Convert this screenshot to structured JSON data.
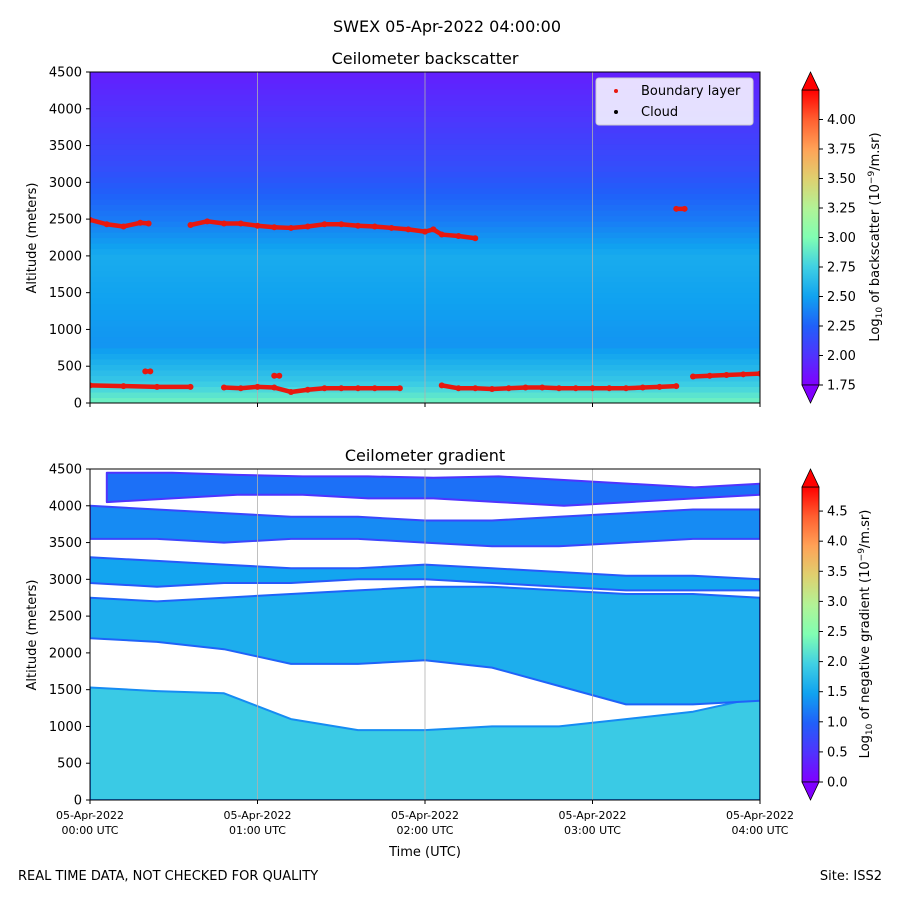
{
  "figure": {
    "suptitle": "SWEX 05-Apr-2022 04:00:00",
    "quality_note": "REAL TIME DATA, NOT CHECKED FOR QUALITY",
    "site": "Site: ISS2",
    "xlabel": "Time (UTC)"
  },
  "chart_data": [
    {
      "type": "heatmap",
      "title": "Ceilometer backscatter",
      "ylabel": "Altitude (meters)",
      "xlim_hours": [
        0,
        4
      ],
      "ylim": [
        0,
        4500
      ],
      "yticks": [
        0,
        500,
        1000,
        1500,
        2000,
        2500,
        3000,
        3500,
        4000,
        4500
      ],
      "xticks": [
        {
          "date": "05-Apr-2022",
          "time": "00:00 UTC"
        },
        {
          "date": "05-Apr-2022",
          "time": "01:00 UTC"
        },
        {
          "date": "05-Apr-2022",
          "time": "02:00 UTC"
        },
        {
          "date": "05-Apr-2022",
          "time": "03:00 UTC"
        },
        {
          "date": "05-Apr-2022",
          "time": "04:00 UTC"
        }
      ],
      "show_xtick_labels": false,
      "grid_x": true,
      "colormap": "rainbow",
      "colorbar": {
        "label": "Log10 of backscatter (10^-9/m.sr)",
        "range": [
          1.75,
          4.25
        ],
        "ticks": [
          "1.75",
          "2.00",
          "2.25",
          "2.50",
          "2.75",
          "3.00",
          "3.25",
          "3.50",
          "3.75",
          "4.00"
        ],
        "tick_values": [
          1.75,
          2.0,
          2.25,
          2.5,
          2.75,
          3.0,
          3.25,
          3.5,
          3.75,
          4.0
        ]
      },
      "legend": {
        "position": "top-right",
        "entries": [
          {
            "label": "Boundary layer",
            "color": "#e8180f"
          },
          {
            "label": "Cloud",
            "color": "#000000"
          }
        ]
      },
      "field": {
        "description": "approximate log10 backscatter by altitude band",
        "altitude_profile": [
          {
            "alt": 0,
            "value": 2.95
          },
          {
            "alt": 300,
            "value": 2.7
          },
          {
            "alt": 800,
            "value": 2.45
          },
          {
            "alt": 2000,
            "value": 2.55
          },
          {
            "alt": 2500,
            "value": 2.35
          },
          {
            "alt": 3200,
            "value": 2.15
          },
          {
            "alt": 4500,
            "value": 1.9
          }
        ]
      },
      "series": [
        {
          "name": "Boundary layer (upper)",
          "x_hours": [
            0.0,
            0.1,
            0.2,
            0.3,
            0.35,
            0.6,
            0.7,
            0.8,
            0.9,
            1.0,
            1.1,
            1.2,
            1.3,
            1.4,
            1.5,
            1.6,
            1.7,
            1.8,
            1.9,
            2.0,
            2.05,
            2.1,
            2.2,
            2.3
          ],
          "alt": [
            2490,
            2430,
            2400,
            2450,
            2440,
            2420,
            2470,
            2440,
            2440,
            2410,
            2390,
            2380,
            2400,
            2430,
            2430,
            2410,
            2400,
            2380,
            2360,
            2330,
            2360,
            2290,
            2270,
            2240
          ]
        },
        {
          "name": "Boundary layer (isolated)",
          "x_hours": [
            3.5,
            3.55
          ],
          "alt": [
            2640,
            2640
          ]
        },
        {
          "name": "Boundary layer (lower)",
          "x_hours": [
            0.0,
            0.2,
            0.4,
            0.6,
            0.8,
            0.9,
            1.0,
            1.1,
            1.2,
            1.3,
            1.4,
            1.5,
            1.6,
            1.7,
            1.85,
            2.0,
            2.1,
            2.2,
            2.3,
            2.4,
            2.5,
            2.6,
            2.7,
            2.8,
            2.9,
            3.0,
            3.1,
            3.2,
            3.3,
            3.4,
            3.5,
            3.55,
            3.6,
            3.7,
            3.8,
            3.9,
            4.0
          ],
          "alt": [
            240,
            230,
            220,
            220,
            210,
            200,
            220,
            210,
            150,
            180,
            200,
            200,
            200,
            200,
            200,
            null,
            240,
            200,
            200,
            190,
            200,
            210,
            210,
            200,
            200,
            200,
            200,
            200,
            210,
            220,
            230,
            null,
            360,
            370,
            380,
            390,
            400
          ]
        },
        {
          "name": "Boundary layer (isolated low)",
          "x_hours": [
            0.33,
            0.36,
            1.1,
            1.13
          ],
          "alt": [
            430,
            430,
            370,
            370
          ]
        }
      ]
    },
    {
      "type": "heatmap",
      "title": "Ceilometer gradient",
      "ylabel": "Altitude (meters)",
      "xlim_hours": [
        0,
        4
      ],
      "ylim": [
        0,
        4500
      ],
      "yticks": [
        0,
        500,
        1000,
        1500,
        2000,
        2500,
        3000,
        3500,
        4000,
        4500
      ],
      "xticks": [
        {
          "date": "05-Apr-2022",
          "time": "00:00 UTC"
        },
        {
          "date": "05-Apr-2022",
          "time": "01:00 UTC"
        },
        {
          "date": "05-Apr-2022",
          "time": "02:00 UTC"
        },
        {
          "date": "05-Apr-2022",
          "time": "03:00 UTC"
        },
        {
          "date": "05-Apr-2022",
          "time": "04:00 UTC"
        }
      ],
      "show_xtick_labels": true,
      "grid_x": true,
      "colormap": "rainbow",
      "colorbar": {
        "label": "Log10 of negative gradient (10^-9/m.sr)",
        "range": [
          0,
          4.9
        ],
        "ticks": [
          "0.0",
          "0.5",
          "1.0",
          "1.5",
          "2.0",
          "2.5",
          "3.0",
          "3.5",
          "4.0",
          "4.5"
        ],
        "tick_values": [
          0,
          0.5,
          1.0,
          1.5,
          2.0,
          2.5,
          3.0,
          3.5,
          4.0,
          4.5
        ]
      },
      "bands": [
        {
          "name": "surface layer",
          "x_hours": [
            0,
            4
          ],
          "alt_top": [
            1530,
            1480,
            1450,
            1100,
            950,
            950,
            1000,
            1000,
            1100,
            1200,
            1400
          ],
          "alt_bottom": [
            0,
            0,
            0,
            0,
            0,
            0,
            0,
            0,
            0,
            0,
            0
          ],
          "value": 1.9
        },
        {
          "name": "mid band",
          "x_hours": [
            0,
            4
          ],
          "alt_top": [
            2750,
            2700,
            2750,
            2800,
            2850,
            2900,
            2900,
            2850,
            2800,
            2800,
            2750
          ],
          "alt_bottom": [
            2200,
            2150,
            2050,
            1850,
            1850,
            1900,
            1800,
            1550,
            1300,
            1300,
            1350
          ],
          "value": 1.6
        },
        {
          "name": "upper band",
          "x_hours": [
            0,
            4
          ],
          "alt_top": [
            3300,
            3250,
            3200,
            3150,
            3150,
            3200,
            3150,
            3100,
            3050,
            3050,
            3000
          ],
          "alt_bottom": [
            2950,
            2900,
            2950,
            2950,
            3000,
            3000,
            2950,
            2900,
            2850,
            2850,
            2850
          ],
          "value": 1.5
        },
        {
          "name": "high band",
          "x_hours": [
            0,
            4
          ],
          "alt_top": [
            4000,
            3950,
            3900,
            3850,
            3850,
            3800,
            3800,
            3850,
            3900,
            3950,
            3950
          ],
          "alt_bottom": [
            3550,
            3550,
            3500,
            3550,
            3550,
            3500,
            3450,
            3450,
            3500,
            3550,
            3550
          ],
          "value": 1.3
        },
        {
          "name": "top band",
          "x_hours": [
            0.1,
            4
          ],
          "alt_top": [
            4450,
            4450,
            4420,
            4400,
            4400,
            4380,
            4400,
            4350,
            4300,
            4250,
            4300
          ],
          "alt_bottom": [
            4050,
            4100,
            4150,
            4150,
            4100,
            4100,
            4050,
            4000,
            4050,
            4100,
            4150
          ],
          "value": 1.1
        }
      ]
    }
  ]
}
